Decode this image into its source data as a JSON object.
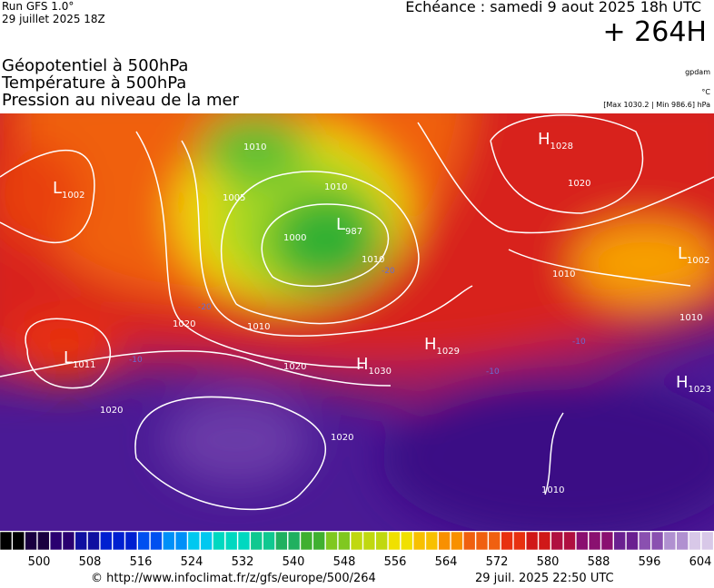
{
  "header": {
    "run": "Run GFS 1.0°",
    "run_date": "29 juillet 2025 18Z",
    "valid": "Echéance : samedi 9 aout 2025 18h UTC",
    "lead": "+ 264H"
  },
  "titles": [
    "Géopotentiel à 500hPa",
    "Température à 500hPa",
    "Pression au niveau de la mer"
  ],
  "units": {
    "geopotential": "gpdam",
    "temperature": "°C",
    "pressure": "[Max 1030.2 | Min 986.6] hPa"
  },
  "pressure_centers": [
    {
      "letter": "L",
      "value": "1002"
    },
    {
      "letter": "L",
      "value": "987"
    },
    {
      "letter": "H",
      "value": "1028"
    },
    {
      "letter": "L",
      "value": "1002"
    },
    {
      "letter": "L",
      "value": "1011"
    },
    {
      "letter": "H",
      "value": "1030"
    },
    {
      "letter": "H",
      "value": "1029"
    },
    {
      "letter": "H",
      "value": "1023"
    }
  ],
  "isobar_labels": [
    "1010",
    "1005",
    "1010",
    "1000",
    "1010",
    "1020",
    "1020",
    "1010",
    "1020",
    "1020",
    "1020",
    "1010",
    "1010",
    "1010"
  ],
  "temperature_labels": [
    "-20",
    "-20",
    "-10",
    "-10",
    "-10"
  ],
  "colorbar": {
    "ticks": [
      500,
      508,
      516,
      524,
      532,
      540,
      548,
      556,
      564,
      572,
      580,
      588,
      596,
      604
    ]
  },
  "footer": {
    "url": "© http://www.infoclimat.fr/z/gfs/europe/500/264",
    "timestamp": "29 juil. 2025 22:50 UTC"
  }
}
